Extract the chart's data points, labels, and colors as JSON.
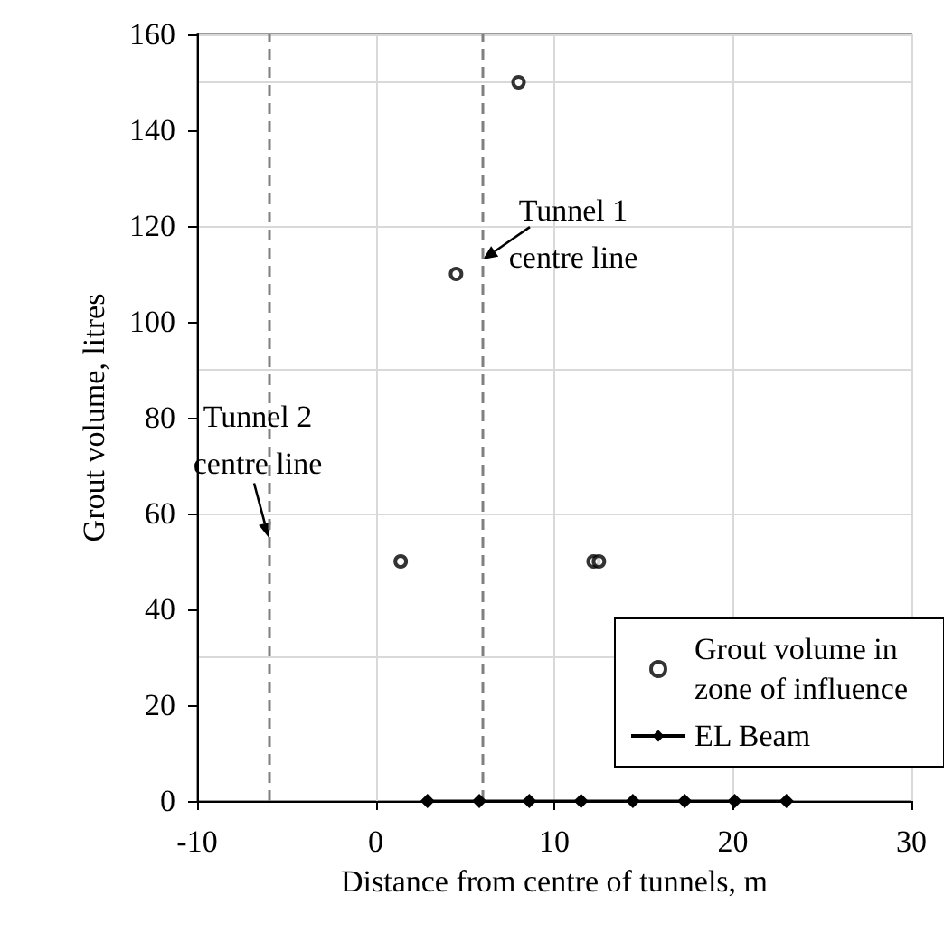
{
  "chart_data": {
    "type": "scatter",
    "xlabel": "Distance from centre of tunnels, m",
    "ylabel": "Grout volume, litres",
    "xlim": [
      -10,
      30
    ],
    "xticks": [
      -10,
      0,
      10,
      20,
      30
    ],
    "ylim": [
      0,
      160
    ],
    "yticks": [
      0,
      20,
      40,
      60,
      80,
      100,
      120,
      140,
      160
    ],
    "grid": true,
    "legend": "bottom right",
    "series": [
      {
        "name": "Grout volume in zone of influence",
        "marker": "circle",
        "color": "#000000",
        "x": [
          1.4,
          4.5,
          8.0,
          12.2,
          12.5
        ],
        "values": [
          50,
          110,
          150,
          50,
          50
        ]
      },
      {
        "name": "EL Beam",
        "type": "line",
        "marker": "diamond",
        "color": "#000000",
        "x": [
          2.9,
          5.8,
          8.6,
          11.5,
          14.4,
          17.3,
          20.1,
          23.0
        ],
        "values": [
          0,
          0,
          0,
          0,
          0,
          0,
          0,
          0
        ]
      }
    ],
    "ref_lines": [
      {
        "axis": "x",
        "value": -6,
        "label": null,
        "color": "#808080",
        "line_style": "dashed"
      },
      {
        "axis": "x",
        "value": 6,
        "label": null,
        "color": "#808080",
        "line_style": "dashed"
      }
    ],
    "annotations": [
      {
        "text": "Tunnel 1\ncentre line",
        "x": 6,
        "y": 113
      },
      {
        "text": "Tunnel 2\ncentre line",
        "x": -6,
        "y": 55
      }
    ]
  }
}
